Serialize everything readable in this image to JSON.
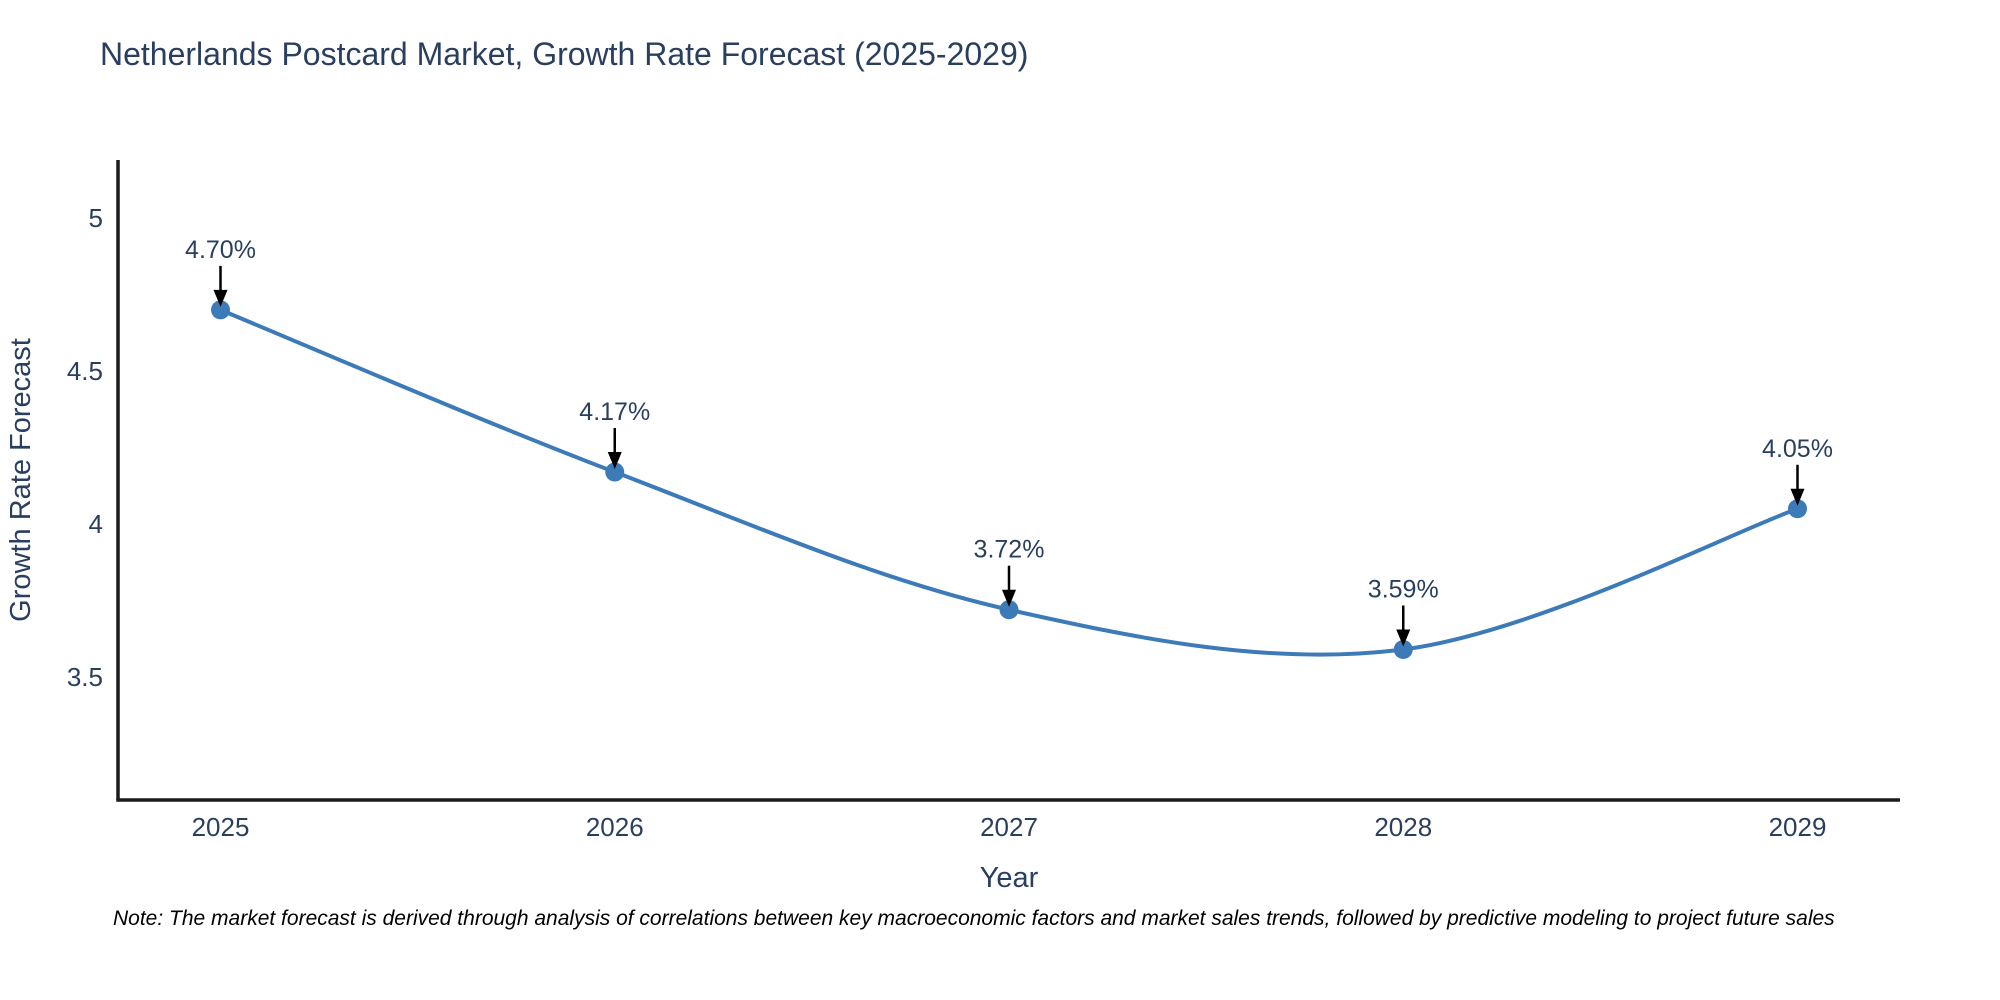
{
  "note": "Note: The market forecast is derived through analysis of correlations between key macroeconomic factors and market sales trends, followed by predictive modeling to project future sales",
  "chart_data": {
    "type": "line",
    "title": "Netherlands Postcard Market, Growth Rate Forecast (2025-2029)",
    "xlabel": "Year",
    "ylabel": "Growth Rate Forecast",
    "x": [
      2025,
      2026,
      2027,
      2028,
      2029
    ],
    "values": [
      4.7,
      4.17,
      3.72,
      3.59,
      4.05
    ],
    "point_labels": [
      "4.70%",
      "4.17%",
      "3.72%",
      "3.59%",
      "4.05%"
    ],
    "series_name": "Growth Rate Forecast",
    "yticks": [
      3.5,
      4,
      4.5,
      5
    ],
    "ylim": [
      3.098,
      5.19
    ],
    "xlim": [
      2024.74,
      2029.26
    ],
    "line_shape": "spline",
    "grid": false,
    "legend": "none",
    "annotations": "each point labeled with percent value and a black arrow pointing down to the marker",
    "colors": {
      "line": "#3d7ab8",
      "marker": "#3d7ab8",
      "arrow": "#000000",
      "axis_line": "#1c1c1c",
      "text": "#2a3f5f",
      "note_text": "#000000",
      "background": "#ffffff"
    }
  }
}
